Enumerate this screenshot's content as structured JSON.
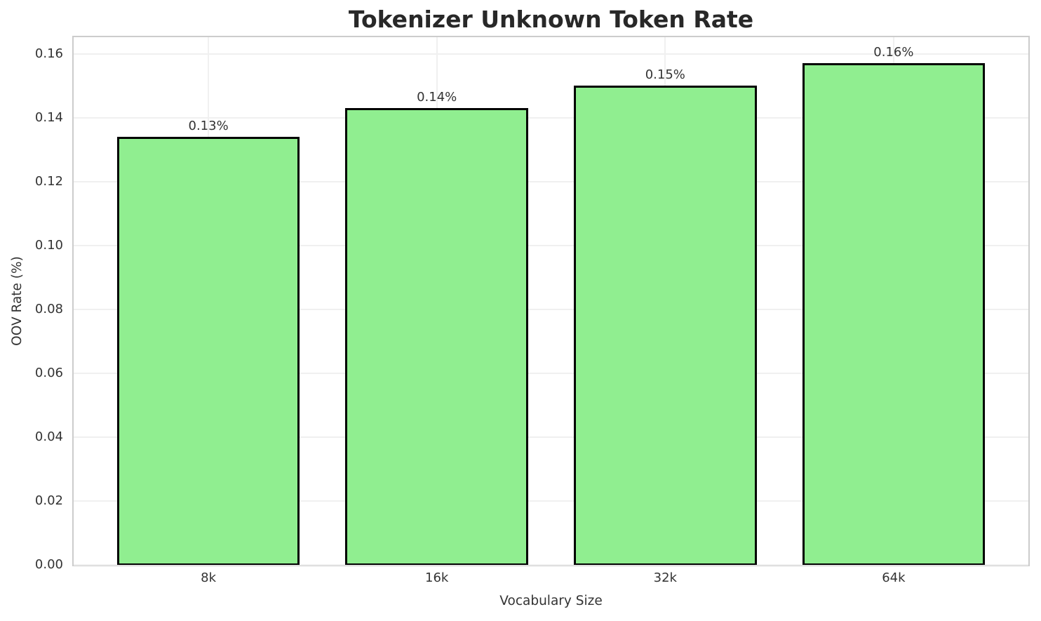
{
  "figure": {
    "title": "Tokenizer Unknown Token Rate",
    "xlabel": "Vocabulary Size",
    "ylabel": "OOV Rate (%)"
  },
  "chart_data": {
    "type": "bar",
    "title": "Tokenizer Unknown Token Rate",
    "xlabel": "Vocabulary Size",
    "ylabel": "OOV Rate (%)",
    "categories": [
      "8k",
      "16k",
      "32k",
      "64k"
    ],
    "values": [
      0.134,
      0.143,
      0.15,
      0.157
    ],
    "bar_labels": [
      "0.13%",
      "0.14%",
      "0.15%",
      "0.16%"
    ],
    "yticks": [
      0.0,
      0.02,
      0.04,
      0.06,
      0.08,
      0.1,
      0.12,
      0.14,
      0.16
    ],
    "ytick_labels": [
      "0.00",
      "0.02",
      "0.04",
      "0.06",
      "0.08",
      "0.10",
      "0.12",
      "0.14",
      "0.16"
    ],
    "ylim": [
      0,
      0.1652
    ],
    "grid": true,
    "legend_position": "none",
    "bar_color": "#90EE90",
    "bar_edge_color": "#000000",
    "grid_color": "#f0f0f0",
    "spine_color": "#cccccc",
    "background": "#ffffff"
  }
}
